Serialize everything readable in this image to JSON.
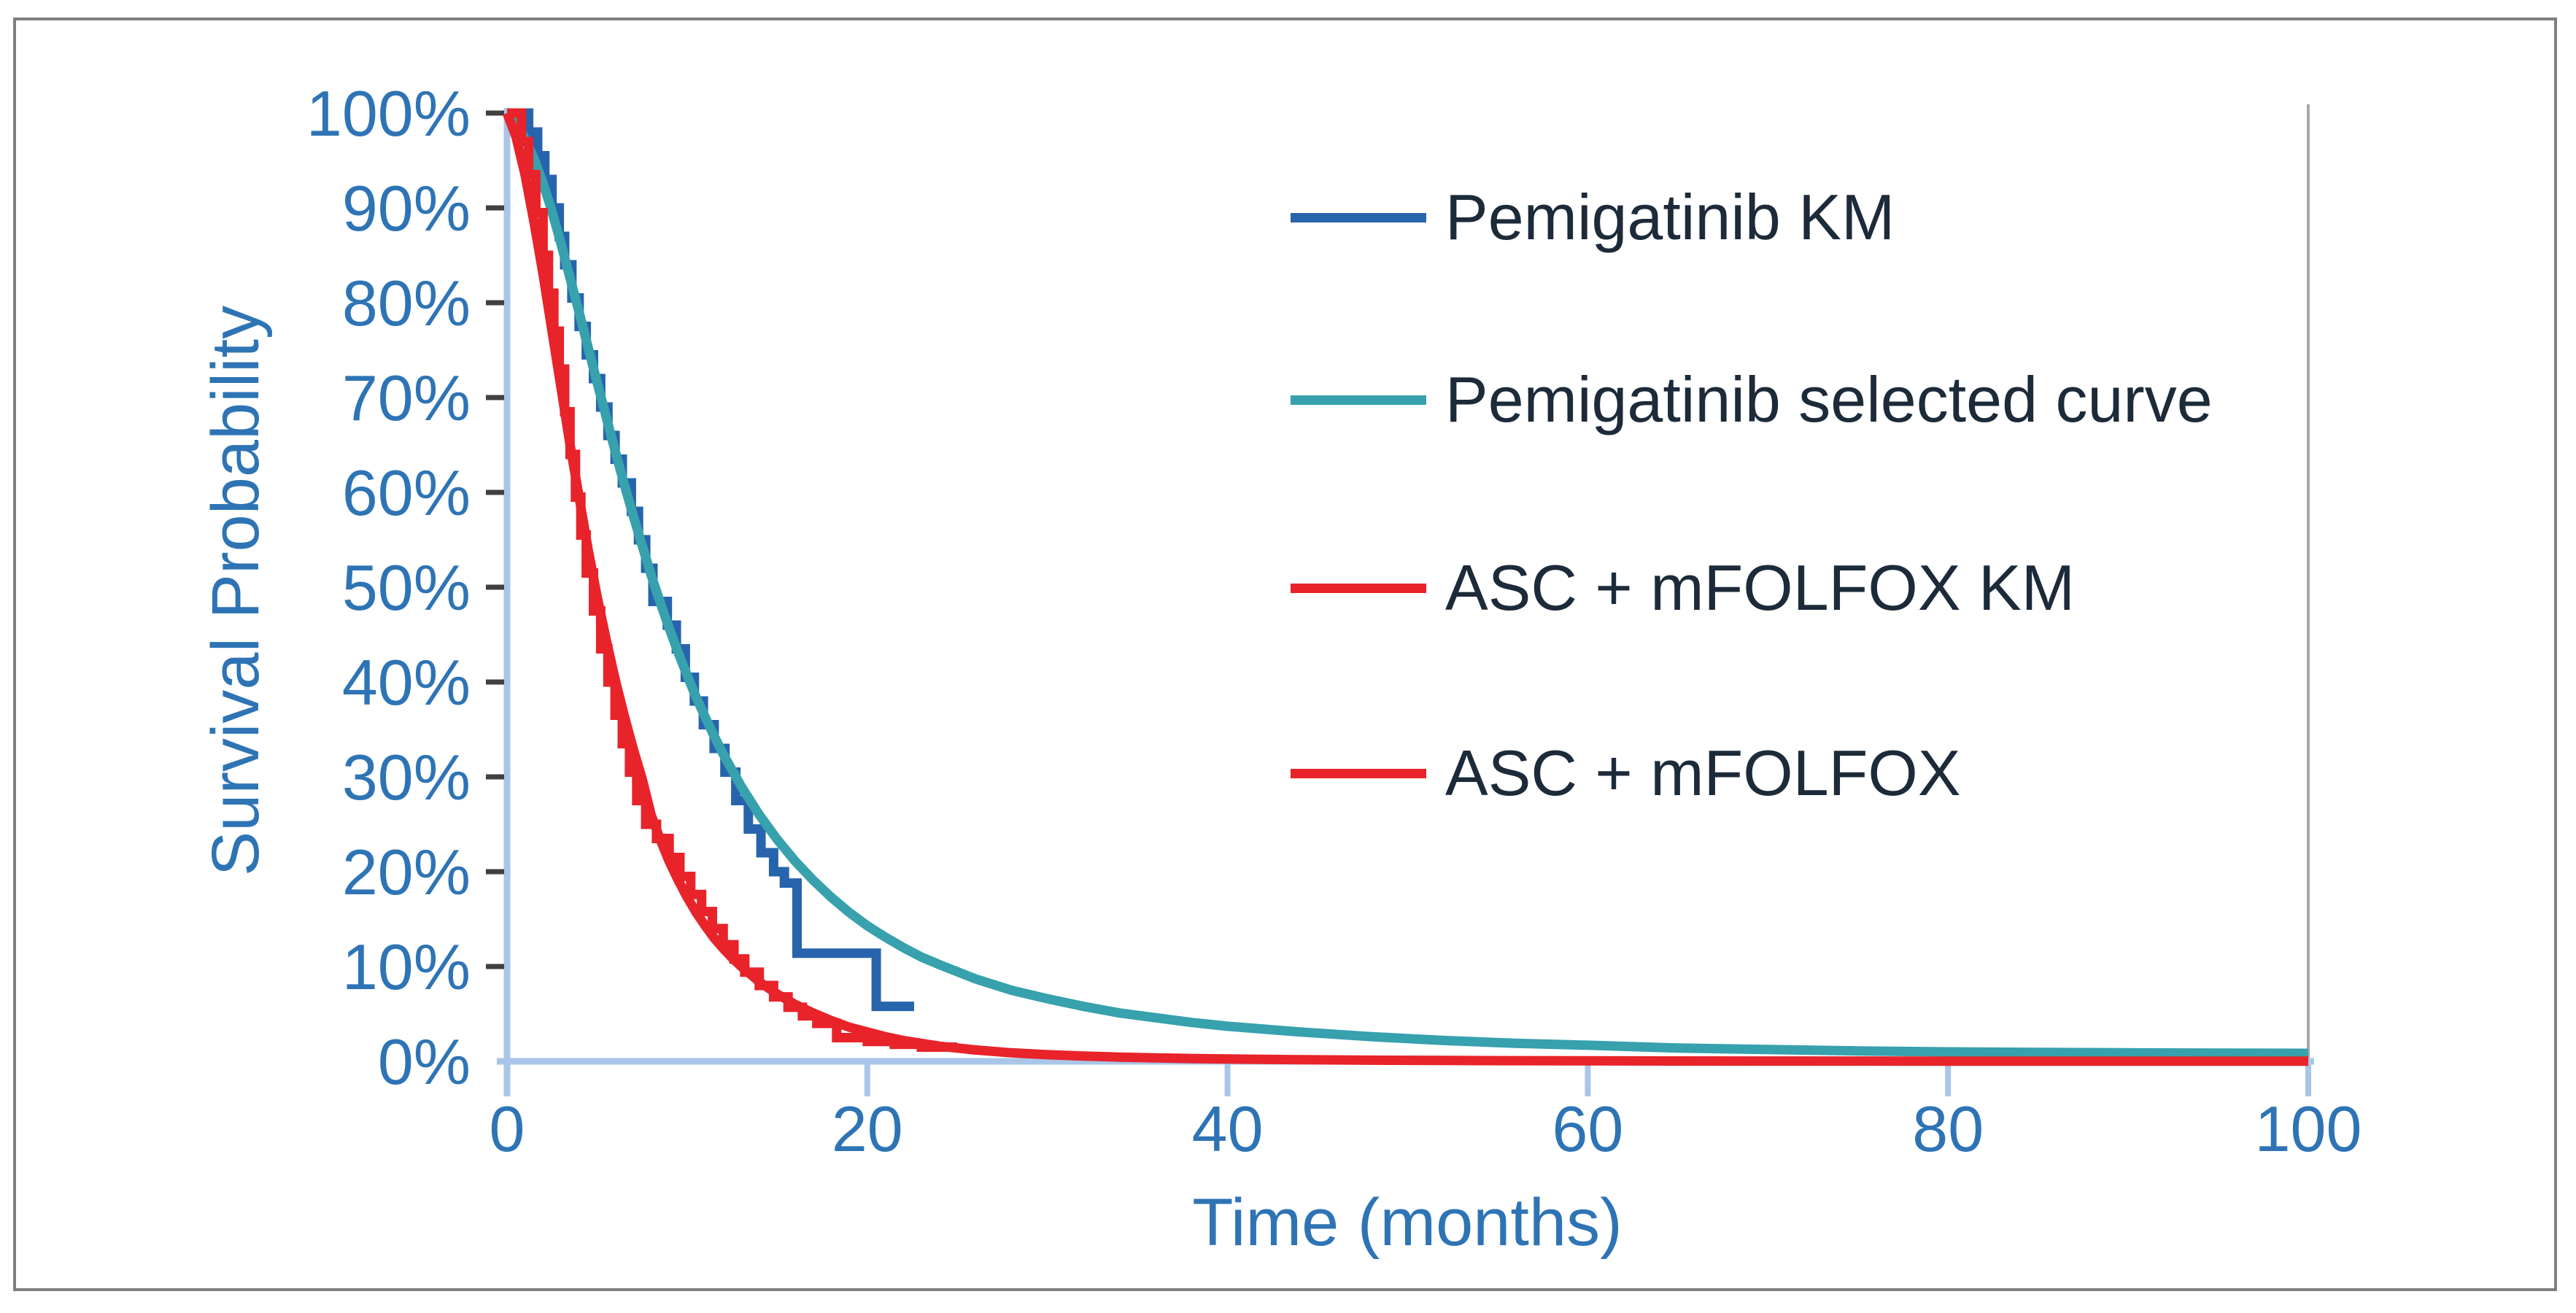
{
  "chart_data": {
    "type": "line",
    "title": "",
    "xlabel": "Time (months)",
    "ylabel": "Survival Probability",
    "xlim": [
      0,
      100
    ],
    "ylim": [
      0,
      100
    ],
    "grid": "off",
    "legend_position": "inside-top-right",
    "x_ticks": [
      {
        "value": 0,
        "label": "0"
      },
      {
        "value": 20,
        "label": "20"
      },
      {
        "value": 40,
        "label": "40"
      },
      {
        "value": 60,
        "label": "60"
      },
      {
        "value": 80,
        "label": "80"
      },
      {
        "value": 100,
        "label": "100"
      }
    ],
    "y_ticks": [
      {
        "value": 0,
        "label": "0%"
      },
      {
        "value": 10,
        "label": "10%"
      },
      {
        "value": 20,
        "label": "20%"
      },
      {
        "value": 30,
        "label": "30%"
      },
      {
        "value": 40,
        "label": "40%"
      },
      {
        "value": 50,
        "label": "50%"
      },
      {
        "value": 60,
        "label": "60%"
      },
      {
        "value": 70,
        "label": "70%"
      },
      {
        "value": 80,
        "label": "80%"
      },
      {
        "value": 90,
        "label": "90%"
      },
      {
        "value": 100,
        "label": "100%"
      }
    ],
    "colors": {
      "axis_line": "#a9c6e8",
      "tick_label": "#2e74b5",
      "axis_title": "#2e74b5",
      "legend_text": "#1c2a39",
      "y_tick_mark": "#404040",
      "plot_right_border": "#a8a8a8",
      "frame_border": "#7f7f7f"
    },
    "series": [
      {
        "name": "Pemigatinib KM",
        "color": "#2764ad",
        "style": "step",
        "points": [
          [
            0,
            100
          ],
          [
            1.2,
            98
          ],
          [
            1.7,
            95.5
          ],
          [
            2.1,
            93
          ],
          [
            2.5,
            90
          ],
          [
            2.9,
            87
          ],
          [
            3.2,
            84
          ],
          [
            3.6,
            80.5
          ],
          [
            4.0,
            77.5
          ],
          [
            4.4,
            74.5
          ],
          [
            4.8,
            72
          ],
          [
            5.2,
            69
          ],
          [
            5.6,
            66
          ],
          [
            6.0,
            63.5
          ],
          [
            6.4,
            61
          ],
          [
            6.9,
            58
          ],
          [
            7.3,
            55
          ],
          [
            7.7,
            52
          ],
          [
            8.1,
            48.5
          ],
          [
            8.9,
            46
          ],
          [
            9.4,
            43.5
          ],
          [
            9.9,
            40.5
          ],
          [
            10.4,
            38
          ],
          [
            10.9,
            35.5
          ],
          [
            11.5,
            33
          ],
          [
            12.1,
            30.5
          ],
          [
            12.7,
            27.5
          ],
          [
            13.4,
            24.5
          ],
          [
            14.1,
            22
          ],
          [
            14.8,
            20
          ],
          [
            15.4,
            18.8
          ],
          [
            16.1,
            11.4
          ],
          [
            20.5,
            5.8
          ],
          [
            22.6,
            5.8
          ]
        ]
      },
      {
        "name": "Pemigatinib selected curve",
        "color": "#37a1ad",
        "style": "smooth",
        "points": [
          [
            0,
            100
          ],
          [
            0.5,
            99
          ],
          [
            1,
            97.3
          ],
          [
            1.5,
            95.2
          ],
          [
            2,
            92.6
          ],
          [
            2.5,
            89.6
          ],
          [
            3,
            86.2
          ],
          [
            3.5,
            82.6
          ],
          [
            4,
            79
          ],
          [
            4.5,
            75.3
          ],
          [
            5,
            71.6
          ],
          [
            5.5,
            68
          ],
          [
            6,
            64.4
          ],
          [
            6.5,
            60.9
          ],
          [
            7,
            57.6
          ],
          [
            7.5,
            54.4
          ],
          [
            8,
            51.3
          ],
          [
            8.5,
            48.4
          ],
          [
            9,
            45.7
          ],
          [
            9.5,
            43.1
          ],
          [
            10,
            40.7
          ],
          [
            10.5,
            38.4
          ],
          [
            11,
            36.3
          ],
          [
            11.5,
            34.3
          ],
          [
            12,
            32.4
          ],
          [
            13,
            29
          ],
          [
            14,
            26
          ],
          [
            15,
            23.4
          ],
          [
            16,
            21.1
          ],
          [
            17,
            19.1
          ],
          [
            18,
            17.3
          ],
          [
            19,
            15.7
          ],
          [
            20,
            14.3
          ],
          [
            21,
            13.1
          ],
          [
            22,
            12
          ],
          [
            23,
            11
          ],
          [
            24,
            10.2
          ],
          [
            26,
            8.7
          ],
          [
            28,
            7.5
          ],
          [
            30,
            6.6
          ],
          [
            32,
            5.8
          ],
          [
            34,
            5.1
          ],
          [
            36,
            4.6
          ],
          [
            38,
            4.1
          ],
          [
            40,
            3.7
          ],
          [
            44,
            3.1
          ],
          [
            48,
            2.6
          ],
          [
            52,
            2.2
          ],
          [
            56,
            1.9
          ],
          [
            60,
            1.7
          ],
          [
            65,
            1.4
          ],
          [
            70,
            1.25
          ],
          [
            75,
            1.1
          ],
          [
            80,
            1.0
          ],
          [
            85,
            0.95
          ],
          [
            90,
            0.9
          ],
          [
            95,
            0.87
          ],
          [
            100,
            0.85
          ]
        ]
      },
      {
        "name": "ASC + mFOLFOX KM",
        "color": "#e8232a",
        "style": "step",
        "points": [
          [
            0,
            100
          ],
          [
            0.8,
            97
          ],
          [
            1.2,
            93.5
          ],
          [
            1.6,
            89.5
          ],
          [
            2.0,
            85
          ],
          [
            2.3,
            81
          ],
          [
            2.6,
            77
          ],
          [
            2.9,
            73
          ],
          [
            3.2,
            68.5
          ],
          [
            3.5,
            64
          ],
          [
            3.8,
            59.5
          ],
          [
            4.1,
            55.5
          ],
          [
            4.4,
            51.5
          ],
          [
            4.8,
            47.5
          ],
          [
            5.2,
            43.5
          ],
          [
            5.6,
            40
          ],
          [
            6.0,
            36.5
          ],
          [
            6.4,
            33.5
          ],
          [
            6.8,
            30.5
          ],
          [
            7.2,
            27.5
          ],
          [
            7.7,
            25
          ],
          [
            8.3,
            23.5
          ],
          [
            9.0,
            21.5
          ],
          [
            9.6,
            19.5
          ],
          [
            10.2,
            17.6
          ],
          [
            10.8,
            15.8
          ],
          [
            11.4,
            14
          ],
          [
            12.0,
            12.3
          ],
          [
            12.6,
            10.8
          ],
          [
            13.2,
            9.4
          ],
          [
            14.0,
            8.0
          ],
          [
            14.8,
            6.8
          ],
          [
            15.6,
            5.7
          ],
          [
            16.4,
            4.8
          ],
          [
            17.2,
            4.0
          ],
          [
            18.3,
            2.5
          ],
          [
            20.0,
            2.1
          ],
          [
            21.5,
            1.8
          ],
          [
            23.0,
            1.5
          ],
          [
            25.0,
            1.5
          ]
        ]
      },
      {
        "name": "ASC + mFOLFOX",
        "color": "#e8232a",
        "style": "smooth",
        "points": [
          [
            0,
            100
          ],
          [
            0.5,
            97.5
          ],
          [
            1,
            93.5
          ],
          [
            1.5,
            88.5
          ],
          [
            2,
            83
          ],
          [
            2.5,
            77
          ],
          [
            3,
            71
          ],
          [
            3.5,
            65
          ],
          [
            4,
            59.5
          ],
          [
            4.5,
            54
          ],
          [
            5,
            49
          ],
          [
            5.5,
            44.5
          ],
          [
            6,
            40.3
          ],
          [
            6.5,
            36.5
          ],
          [
            7,
            33
          ],
          [
            7.5,
            29.8
          ],
          [
            8,
            26
          ],
          [
            8.5,
            23.4
          ],
          [
            9,
            21.1
          ],
          [
            9.5,
            19.1
          ],
          [
            10,
            17.3
          ],
          [
            10.5,
            15.7
          ],
          [
            11,
            14.3
          ],
          [
            11.5,
            13
          ],
          [
            12,
            11.9
          ],
          [
            12.5,
            10.9
          ],
          [
            13,
            10
          ],
          [
            14,
            8.4
          ],
          [
            15,
            7.1
          ],
          [
            16,
            6
          ],
          [
            17,
            5.1
          ],
          [
            18,
            4.3
          ],
          [
            19,
            3.6
          ],
          [
            20,
            3.1
          ],
          [
            21,
            2.6
          ],
          [
            22,
            2.2
          ],
          [
            23,
            1.9
          ],
          [
            24,
            1.6
          ],
          [
            26,
            1.2
          ],
          [
            28,
            0.9
          ],
          [
            30,
            0.7
          ],
          [
            32,
            0.55
          ],
          [
            34,
            0.45
          ],
          [
            36,
            0.36
          ],
          [
            38,
            0.3
          ],
          [
            40,
            0.25
          ],
          [
            44,
            0.17
          ],
          [
            48,
            0.12
          ],
          [
            52,
            0.09
          ],
          [
            56,
            0.07
          ],
          [
            60,
            0.05
          ],
          [
            65,
            0.04
          ],
          [
            70,
            0.03
          ],
          [
            75,
            0.03
          ],
          [
            80,
            0.02
          ],
          [
            90,
            0.02
          ],
          [
            100,
            0.02
          ]
        ]
      }
    ]
  }
}
